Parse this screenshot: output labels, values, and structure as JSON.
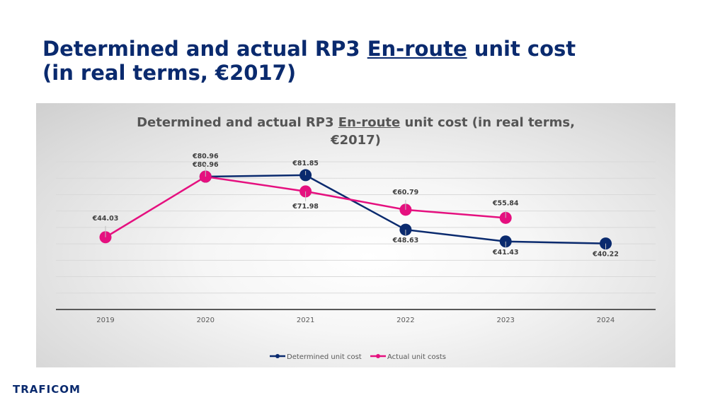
{
  "page": {
    "title_line1_pre": "Determined and actual RP3 ",
    "title_line1_u": "En-route",
    "title_line1_post": " unit cost",
    "title_line2": "(in real terms, €2017)"
  },
  "logo": "TRAFICOM",
  "chart_data": {
    "type": "line",
    "title_pre": "Determined and actual RP3 ",
    "title_u": "En-route",
    "title_post": " unit cost (in real terms,",
    "title_line2": "€2017)",
    "categories": [
      "2019",
      "2020",
      "2021",
      "2022",
      "2023",
      "2024"
    ],
    "series": [
      {
        "name": "Determined unit cost",
        "color": "#0a2a6e",
        "values": [
          null,
          80.96,
          81.85,
          48.63,
          41.43,
          40.22
        ],
        "labels": [
          "",
          "€80.96",
          "€81.85",
          "€48.63",
          "€41.43",
          "€40.22"
        ]
      },
      {
        "name": "Actual unit costs",
        "color": "#e5107f",
        "values": [
          44.03,
          80.96,
          71.98,
          60.79,
          55.84,
          null
        ],
        "labels": [
          "€44.03",
          "€80.96",
          "€71.98",
          "€60.79",
          "€55.84",
          ""
        ]
      }
    ],
    "ylim": [
      0,
      90
    ],
    "grid": true,
    "legend": "bottom"
  }
}
